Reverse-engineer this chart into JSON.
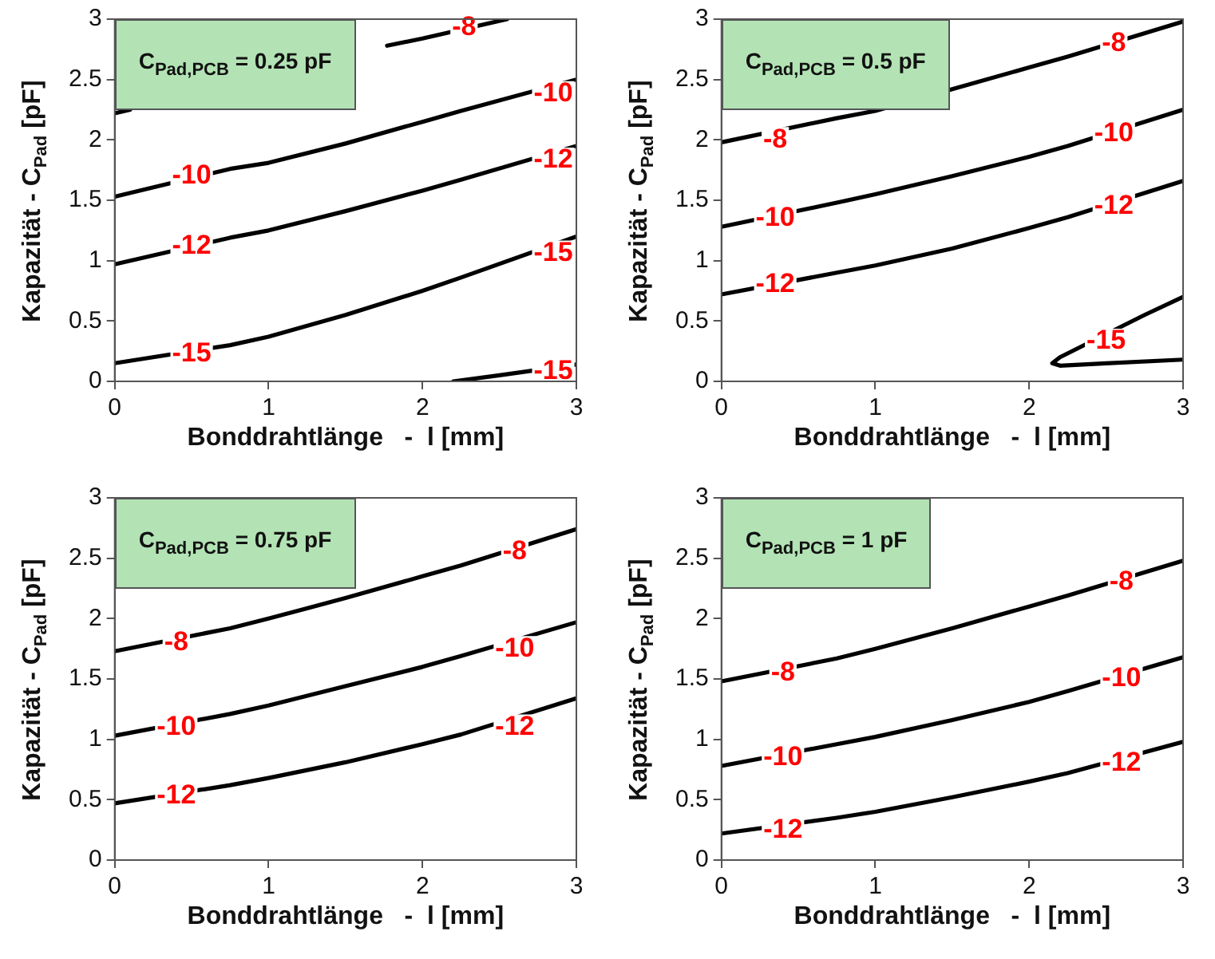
{
  "chart_data": [
    {
      "type": "line",
      "title": "C$_{Pad,PCB}$ = 0.25 pF",
      "xlabel": "Bonddrahtlänge   -  l [mm]",
      "ylabel": "Kapazität   -   C$_{Pad}$ [pF]",
      "xlim": [
        0,
        3
      ],
      "ylim": [
        0,
        3
      ],
      "xticks": [
        0,
        1,
        2,
        3
      ],
      "yticks": [
        0,
        0.5,
        1,
        1.5,
        2,
        2.5,
        3
      ],
      "grid": false,
      "legend": false,
      "marker": "none",
      "line_style": "solid",
      "series": [
        {
          "color": "#000000",
          "x": [
            0,
            0.1,
            1,
            1.77,
            2.0,
            2.55
          ],
          "values": [
            2.22,
            2.25,
            null,
            2.78,
            2.84,
            3.0
          ]
        },
        {
          "color": "#000000",
          "x": [
            0,
            0.75,
            1,
            1.5,
            2,
            2.25,
            3
          ],
          "values": [
            1.53,
            1.76,
            1.81,
            1.97,
            2.15,
            2.24,
            2.5
          ]
        },
        {
          "color": "#000000",
          "x": [
            0,
            0.75,
            1,
            1.5,
            2,
            2.25,
            3
          ],
          "values": [
            0.97,
            1.19,
            1.25,
            1.41,
            1.58,
            1.67,
            1.95
          ]
        },
        {
          "color": "#000000",
          "x": [
            0,
            0.75,
            1,
            1.5,
            2,
            2.25,
            3
          ],
          "values": [
            0.15,
            0.3,
            0.37,
            0.55,
            0.75,
            0.86,
            1.2
          ]
        },
        {
          "color": "#000000",
          "x": [
            2.2,
            2.5,
            3
          ],
          "values": [
            0,
            0.05,
            0.14
          ]
        }
      ],
      "annotations": [
        {
          "text": "-8",
          "x": 2.27,
          "y": 2.93
        },
        {
          "text": "-10",
          "x": 0.5,
          "y": 1.7
        },
        {
          "text": "-10",
          "x": 2.85,
          "y": 2.38
        },
        {
          "text": "-12",
          "x": 0.5,
          "y": 1.12
        },
        {
          "text": "-12",
          "x": 2.85,
          "y": 1.83
        },
        {
          "text": "-15",
          "x": 0.5,
          "y": 0.23
        },
        {
          "text": "-15",
          "x": 2.85,
          "y": 1.06
        },
        {
          "text": "-15",
          "x": 2.85,
          "y": 0.08
        }
      ]
    },
    {
      "type": "line",
      "title": "C$_{Pad,PCB}$ = 0.5 pF",
      "xlabel": "Bonddrahtlänge   -  l [mm]",
      "ylabel": "Kapazität   -   C$_{Pad}$ [pF]",
      "xlim": [
        0,
        3
      ],
      "ylim": [
        0,
        3
      ],
      "xticks": [
        0,
        1,
        2,
        3
      ],
      "yticks": [
        0,
        0.5,
        1,
        1.5,
        2,
        2.5,
        3
      ],
      "grid": false,
      "legend": false,
      "marker": "none",
      "line_style": "solid",
      "series": [
        {
          "color": "#000000",
          "x": [
            0,
            0.75,
            1,
            1.5,
            2,
            2.25,
            3
          ],
          "values": [
            1.98,
            2.18,
            2.24,
            2.42,
            2.6,
            2.69,
            2.98
          ]
        },
        {
          "color": "#000000",
          "x": [
            0,
            0.75,
            1,
            1.5,
            2,
            2.25,
            3
          ],
          "values": [
            1.28,
            1.48,
            1.55,
            1.7,
            1.86,
            1.95,
            2.25
          ]
        },
        {
          "color": "#000000",
          "x": [
            0,
            0.75,
            1,
            1.5,
            2,
            2.25,
            3
          ],
          "values": [
            0.72,
            0.9,
            0.96,
            1.1,
            1.27,
            1.36,
            1.66
          ]
        },
        {
          "color": "#000000",
          "x": [
            3,
            2.75,
            2.2,
            2.15,
            2.2,
            2.5,
            3
          ],
          "values": [
            0.7,
            0.55,
            0.2,
            0.15,
            0.13,
            0.15,
            0.18
          ]
        }
      ],
      "annotations": [
        {
          "text": "-8",
          "x": 0.35,
          "y": 2.0
        },
        {
          "text": "-8",
          "x": 2.55,
          "y": 2.8
        },
        {
          "text": "-10",
          "x": 0.35,
          "y": 1.35
        },
        {
          "text": "-10",
          "x": 2.55,
          "y": 2.05
        },
        {
          "text": "-12",
          "x": 0.35,
          "y": 0.8
        },
        {
          "text": "-12",
          "x": 2.55,
          "y": 1.45
        },
        {
          "text": "-15",
          "x": 2.5,
          "y": 0.33
        }
      ]
    },
    {
      "type": "line",
      "title": "C$_{Pad,PCB}$ = 0.75 pF",
      "xlabel": "Bonddrahtlänge   -  l [mm]",
      "ylabel": "Kapazität   -   C$_{Pad}$ [pF]",
      "xlim": [
        0,
        3
      ],
      "ylim": [
        0,
        3
      ],
      "xticks": [
        0,
        1,
        2,
        3
      ],
      "yticks": [
        0,
        0.5,
        1,
        1.5,
        2,
        2.5,
        3
      ],
      "grid": false,
      "legend": false,
      "marker": "none",
      "line_style": "solid",
      "series": [
        {
          "color": "#000000",
          "x": [
            0,
            0.75,
            1,
            1.5,
            2,
            2.25,
            3
          ],
          "values": [
            1.73,
            1.92,
            2.0,
            2.17,
            2.35,
            2.44,
            2.74
          ]
        },
        {
          "color": "#000000",
          "x": [
            0,
            0.75,
            1,
            1.5,
            2,
            2.25,
            3
          ],
          "values": [
            1.03,
            1.21,
            1.28,
            1.44,
            1.6,
            1.69,
            1.97
          ]
        },
        {
          "color": "#000000",
          "x": [
            0,
            0.75,
            1,
            1.5,
            2,
            2.25,
            3
          ],
          "values": [
            0.47,
            0.62,
            0.68,
            0.81,
            0.96,
            1.04,
            1.34
          ]
        }
      ],
      "annotations": [
        {
          "text": "-8",
          "x": 0.4,
          "y": 1.8
        },
        {
          "text": "-8",
          "x": 2.6,
          "y": 2.55
        },
        {
          "text": "-10",
          "x": 0.4,
          "y": 1.1
        },
        {
          "text": "-10",
          "x": 2.6,
          "y": 1.75
        },
        {
          "text": "-12",
          "x": 0.4,
          "y": 0.53
        },
        {
          "text": "-12",
          "x": 2.6,
          "y": 1.1
        }
      ]
    },
    {
      "type": "line",
      "title": "C$_{Pad,PCB}$ = 1 pF",
      "xlabel": "Bonddrahtlänge   -  l [mm]",
      "ylabel": "Kapazität   -   C$_{Pad}$ [pF]",
      "xlim": [
        0,
        3
      ],
      "ylim": [
        0,
        3
      ],
      "xticks": [
        0,
        1,
        2,
        3
      ],
      "yticks": [
        0,
        0.5,
        1,
        1.5,
        2,
        2.5,
        3
      ],
      "grid": false,
      "legend": false,
      "marker": "none",
      "line_style": "solid",
      "series": [
        {
          "color": "#000000",
          "x": [
            0,
            0.75,
            1,
            1.5,
            2,
            2.25,
            3
          ],
          "values": [
            1.48,
            1.67,
            1.75,
            1.92,
            2.1,
            2.19,
            2.48
          ]
        },
        {
          "color": "#000000",
          "x": [
            0,
            0.75,
            1,
            1.5,
            2,
            2.25,
            3
          ],
          "values": [
            0.78,
            0.96,
            1.02,
            1.16,
            1.31,
            1.4,
            1.68
          ]
        },
        {
          "color": "#000000",
          "x": [
            0,
            0.75,
            1,
            1.5,
            2,
            2.25,
            3
          ],
          "values": [
            0.22,
            0.35,
            0.4,
            0.52,
            0.65,
            0.72,
            0.98
          ]
        }
      ],
      "annotations": [
        {
          "text": "-8",
          "x": 0.4,
          "y": 1.55
        },
        {
          "text": "-8",
          "x": 2.6,
          "y": 2.3
        },
        {
          "text": "-10",
          "x": 0.4,
          "y": 0.85
        },
        {
          "text": "-10",
          "x": 2.6,
          "y": 1.5
        },
        {
          "text": "-12",
          "x": 0.4,
          "y": 0.25
        },
        {
          "text": "-12",
          "x": 2.6,
          "y": 0.8
        }
      ]
    }
  ]
}
